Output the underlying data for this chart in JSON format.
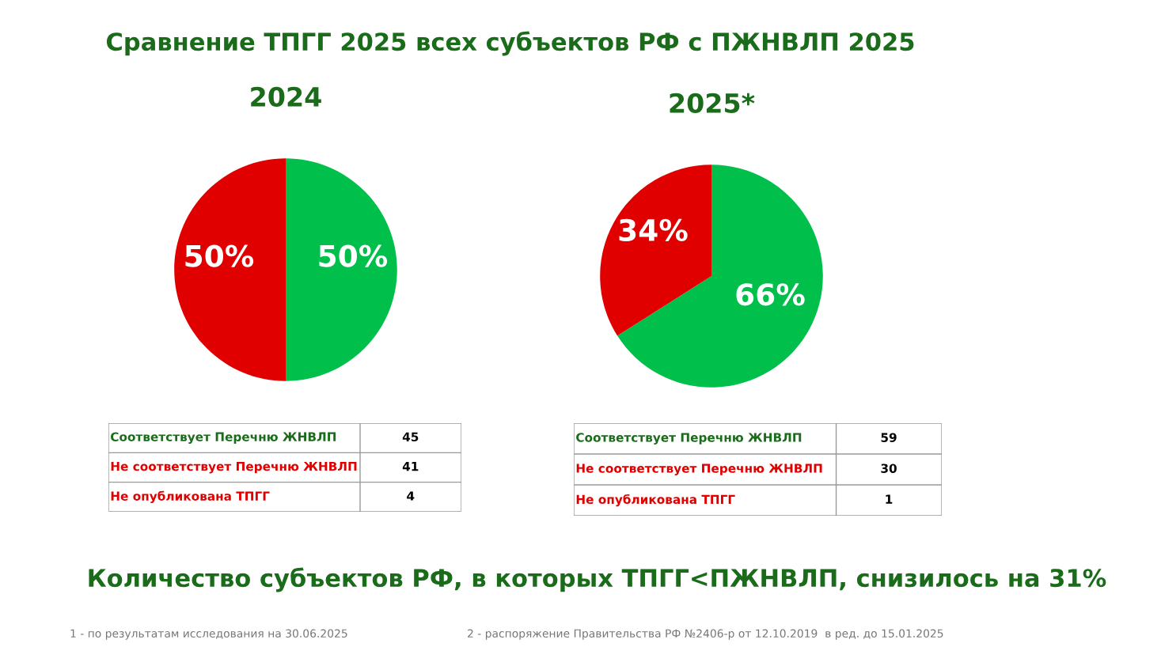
{
  "chart_data": [
    {
      "type": "pie",
      "title": "2024",
      "annotations": [
        "Сравнение ТПГГ 2025 всех субъектов РФ с ПЖНВЛП 2025"
      ],
      "categories": [
        null,
        null
      ],
      "values": [
        50,
        50
      ],
      "colors": [
        "#00c04b",
        "#e00000"
      ],
      "value_labels": [
        "50%",
        "50%"
      ]
    },
    {
      "type": "pie",
      "title": "2025*",
      "categories": [
        null,
        null
      ],
      "values": [
        66,
        34
      ],
      "colors": [
        "#00c04b",
        "#e00000"
      ],
      "value_labels": [
        "66%",
        "34%"
      ]
    },
    {
      "type": "other",
      "categories": [
        "Соответствует Перечню ЖНВЛП",
        "Не соответствует Перечню ЖНВЛП",
        "Не опубликована ТПГГ"
      ],
      "values": [
        45,
        41,
        4
      ],
      "data_labels": true,
      "colors": [
        "#1a6b1a",
        "#e00000",
        "#e00000"
      ]
    },
    {
      "type": "other",
      "categories": [
        "Соответствует Перечню ЖНВЛП",
        "Не соответствует Перечню ЖНВЛП",
        "Не опубликована ТПГГ"
      ],
      "values": [
        59,
        30,
        1
      ],
      "data_labels": true,
      "colors": [
        "#1a6b1a",
        "#e00000",
        "#e00000"
      ],
      "annotations": [
        "Количество субъектов РФ, в которых ТПГГ<ПЖНВЛП, снизилось на 31%",
        "1 - по результатам исследования на 30.06.2025",
        "2 - распоряжение Правительства РФ №2406-р от 12.10.2019  в ред. до 15.01.2025"
      ]
    }
  ]
}
